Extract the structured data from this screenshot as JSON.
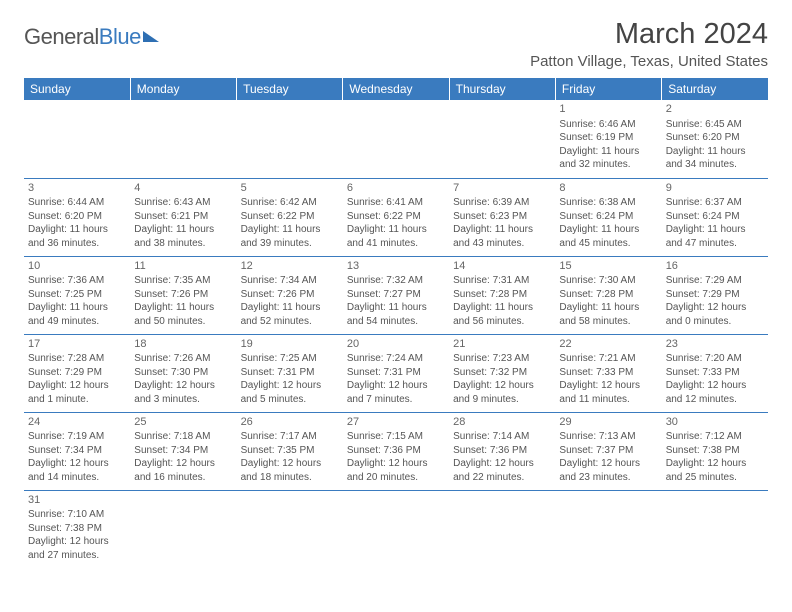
{
  "logo": {
    "general": "General",
    "blue": "Blue"
  },
  "header": {
    "month_title": "March 2024",
    "location": "Patton Village, Texas, United States"
  },
  "colors": {
    "header_bg": "#3a7bbf",
    "header_text": "#ffffff",
    "border": "#3a7bbf",
    "body_text": "#555555"
  },
  "weekdays": [
    "Sunday",
    "Monday",
    "Tuesday",
    "Wednesday",
    "Thursday",
    "Friday",
    "Saturday"
  ],
  "grid": [
    [
      null,
      null,
      null,
      null,
      null,
      {
        "n": "1",
        "sunrise": "6:46 AM",
        "sunset": "6:19 PM",
        "daylight": "11 hours and 32 minutes."
      },
      {
        "n": "2",
        "sunrise": "6:45 AM",
        "sunset": "6:20 PM",
        "daylight": "11 hours and 34 minutes."
      }
    ],
    [
      {
        "n": "3",
        "sunrise": "6:44 AM",
        "sunset": "6:20 PM",
        "daylight": "11 hours and 36 minutes."
      },
      {
        "n": "4",
        "sunrise": "6:43 AM",
        "sunset": "6:21 PM",
        "daylight": "11 hours and 38 minutes."
      },
      {
        "n": "5",
        "sunrise": "6:42 AM",
        "sunset": "6:22 PM",
        "daylight": "11 hours and 39 minutes."
      },
      {
        "n": "6",
        "sunrise": "6:41 AM",
        "sunset": "6:22 PM",
        "daylight": "11 hours and 41 minutes."
      },
      {
        "n": "7",
        "sunrise": "6:39 AM",
        "sunset": "6:23 PM",
        "daylight": "11 hours and 43 minutes."
      },
      {
        "n": "8",
        "sunrise": "6:38 AM",
        "sunset": "6:24 PM",
        "daylight": "11 hours and 45 minutes."
      },
      {
        "n": "9",
        "sunrise": "6:37 AM",
        "sunset": "6:24 PM",
        "daylight": "11 hours and 47 minutes."
      }
    ],
    [
      {
        "n": "10",
        "sunrise": "7:36 AM",
        "sunset": "7:25 PM",
        "daylight": "11 hours and 49 minutes."
      },
      {
        "n": "11",
        "sunrise": "7:35 AM",
        "sunset": "7:26 PM",
        "daylight": "11 hours and 50 minutes."
      },
      {
        "n": "12",
        "sunrise": "7:34 AM",
        "sunset": "7:26 PM",
        "daylight": "11 hours and 52 minutes."
      },
      {
        "n": "13",
        "sunrise": "7:32 AM",
        "sunset": "7:27 PM",
        "daylight": "11 hours and 54 minutes."
      },
      {
        "n": "14",
        "sunrise": "7:31 AM",
        "sunset": "7:28 PM",
        "daylight": "11 hours and 56 minutes."
      },
      {
        "n": "15",
        "sunrise": "7:30 AM",
        "sunset": "7:28 PM",
        "daylight": "11 hours and 58 minutes."
      },
      {
        "n": "16",
        "sunrise": "7:29 AM",
        "sunset": "7:29 PM",
        "daylight": "12 hours and 0 minutes."
      }
    ],
    [
      {
        "n": "17",
        "sunrise": "7:28 AM",
        "sunset": "7:29 PM",
        "daylight": "12 hours and 1 minute."
      },
      {
        "n": "18",
        "sunrise": "7:26 AM",
        "sunset": "7:30 PM",
        "daylight": "12 hours and 3 minutes."
      },
      {
        "n": "19",
        "sunrise": "7:25 AM",
        "sunset": "7:31 PM",
        "daylight": "12 hours and 5 minutes."
      },
      {
        "n": "20",
        "sunrise": "7:24 AM",
        "sunset": "7:31 PM",
        "daylight": "12 hours and 7 minutes."
      },
      {
        "n": "21",
        "sunrise": "7:23 AM",
        "sunset": "7:32 PM",
        "daylight": "12 hours and 9 minutes."
      },
      {
        "n": "22",
        "sunrise": "7:21 AM",
        "sunset": "7:33 PM",
        "daylight": "12 hours and 11 minutes."
      },
      {
        "n": "23",
        "sunrise": "7:20 AM",
        "sunset": "7:33 PM",
        "daylight": "12 hours and 12 minutes."
      }
    ],
    [
      {
        "n": "24",
        "sunrise": "7:19 AM",
        "sunset": "7:34 PM",
        "daylight": "12 hours and 14 minutes."
      },
      {
        "n": "25",
        "sunrise": "7:18 AM",
        "sunset": "7:34 PM",
        "daylight": "12 hours and 16 minutes."
      },
      {
        "n": "26",
        "sunrise": "7:17 AM",
        "sunset": "7:35 PM",
        "daylight": "12 hours and 18 minutes."
      },
      {
        "n": "27",
        "sunrise": "7:15 AM",
        "sunset": "7:36 PM",
        "daylight": "12 hours and 20 minutes."
      },
      {
        "n": "28",
        "sunrise": "7:14 AM",
        "sunset": "7:36 PM",
        "daylight": "12 hours and 22 minutes."
      },
      {
        "n": "29",
        "sunrise": "7:13 AM",
        "sunset": "7:37 PM",
        "daylight": "12 hours and 23 minutes."
      },
      {
        "n": "30",
        "sunrise": "7:12 AM",
        "sunset": "7:38 PM",
        "daylight": "12 hours and 25 minutes."
      }
    ],
    [
      {
        "n": "31",
        "sunrise": "7:10 AM",
        "sunset": "7:38 PM",
        "daylight": "12 hours and 27 minutes."
      },
      null,
      null,
      null,
      null,
      null,
      null
    ]
  ],
  "labels": {
    "sunrise_prefix": "Sunrise: ",
    "sunset_prefix": "Sunset: ",
    "daylight_prefix": "Daylight: "
  }
}
